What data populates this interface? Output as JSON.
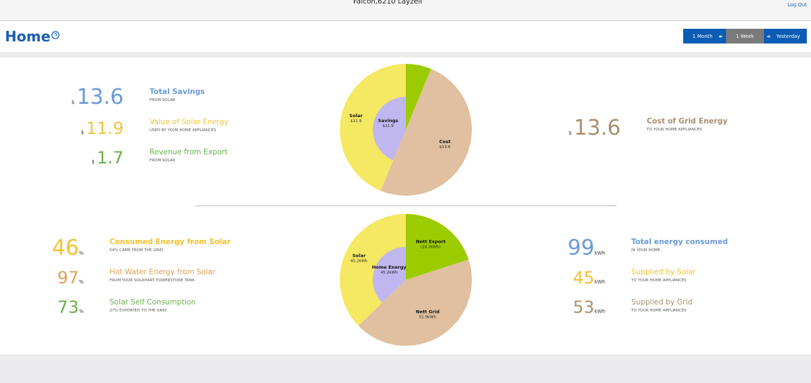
{
  "top_bar": {
    "location": "Falcon,6210 Layzell",
    "logout": "Log Out"
  },
  "header": {
    "title": "Home",
    "buttons": [
      {
        "label": "1 Month",
        "color": "#0b5cb5"
      },
      {
        "label": "1 Week",
        "color": "#7a7a7a"
      },
      {
        "label": "Yesterday",
        "color": "#0b5cb5"
      }
    ]
  },
  "savings": {
    "left": [
      {
        "currency": "$",
        "value": 13.6,
        "title": "Total Savings",
        "subtitle": "FROM SOLAR",
        "color": "#6b9ad8"
      },
      {
        "currency": "$",
        "value": 11.9,
        "title": "Value of Solar Energy",
        "subtitle": "USED BY YOUR HOME APPLIANCES",
        "color": "#f2c43f"
      },
      {
        "currency": "$",
        "value": 1.7,
        "title": "Revenue from Export",
        "subtitle": "FROM SOLAR",
        "color": "#6ab04c"
      }
    ],
    "right": [
      {
        "currency": "$",
        "value": 13.6,
        "title": "Cost of Grid Energy",
        "subtitle": "TO YOUR HOME APPLIANCES",
        "color": "#a8906f"
      }
    ],
    "pie": {
      "slices": [
        {
          "value": 1.7,
          "color": "#9ccc00"
        },
        {
          "name": "Cost",
          "label": "$13.6",
          "value": 13.6,
          "color": "#e0c0a0"
        },
        {
          "name": "Solar",
          "label": "$11.9",
          "value": 11.9,
          "color": "#f5e862"
        }
      ],
      "inner": {
        "name": "Savings",
        "label": "$11.9",
        "value": 11.9,
        "color": "#c0b6f0"
      }
    }
  },
  "energy": {
    "left": [
      {
        "value": 46,
        "unit": "%",
        "title": "Consumed Energy from Solar",
        "subtitle": "54% CAME FROM THE GRID",
        "color": "#f2c233"
      },
      {
        "value": 97,
        "unit": "%",
        "title": "Hot Water Energy from Solar",
        "subtitle": "FROM YOUR SOLAHART POWERSTORE TANK",
        "color": "#e0a050"
      },
      {
        "value": 73,
        "unit": "%",
        "title": "Solar Self Consumption",
        "subtitle": "27% EXPORTED TO THE GRID",
        "color": "#6ab04c"
      }
    ],
    "right": [
      {
        "value": 99,
        "unit": "kWh",
        "title": "Total energy consumed",
        "subtitle": "IN YOUR HOME",
        "color": "#6b9ad8"
      },
      {
        "value": 45,
        "unit": "kWh",
        "title": "Supplied by Solar",
        "subtitle": "TO YOUR HOME APPLIANCES",
        "color": "#f2c233"
      },
      {
        "value": 53,
        "unit": "kWh",
        "title": "Supplied by Grid",
        "subtitle": "TO YOUR HOME APPLIANCES",
        "color": "#a8906f"
      }
    ],
    "pie": {
      "slices": [
        {
          "name": "Nett Export",
          "label": "(24.3kWh)",
          "value": 24.3,
          "color": "#9ccc00"
        },
        {
          "name": "Nett Grid",
          "label": "51.9kWh",
          "value": 51.9,
          "color": "#e0c0a0"
        },
        {
          "name": "Solar",
          "label": "45.2kWh",
          "value": 45.2,
          "color": "#f5e862"
        }
      ],
      "inner": {
        "name": "Home Energy",
        "label": "45.2kWh",
        "value": 45.2,
        "color": "#c0b6f0"
      }
    }
  }
}
